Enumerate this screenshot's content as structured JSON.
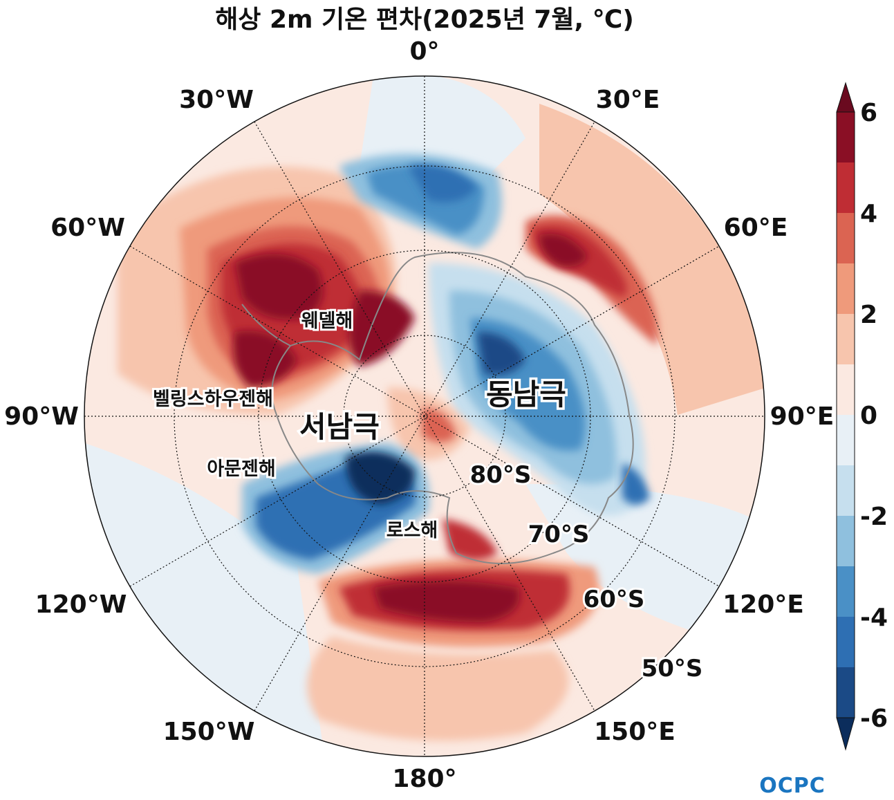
{
  "title": "해상 2m 기온 편차(2025년 7월, ℃)",
  "logo": "OCPC",
  "longitude_labels": [
    {
      "text": "0°",
      "deg": 0
    },
    {
      "text": "30°E",
      "deg": 30
    },
    {
      "text": "60°E",
      "deg": 60
    },
    {
      "text": "90°E",
      "deg": 90
    },
    {
      "text": "120°E",
      "deg": 120
    },
    {
      "text": "150°E",
      "deg": 150
    },
    {
      "text": "180°",
      "deg": 180
    },
    {
      "text": "150°W",
      "deg": -150
    },
    {
      "text": "120°W",
      "deg": -120
    },
    {
      "text": "90°W",
      "deg": -90
    },
    {
      "text": "60°W",
      "deg": -60
    },
    {
      "text": "30°W",
      "deg": -30
    }
  ],
  "latitude_labels": [
    {
      "text": "80°S",
      "lat": -80
    },
    {
      "text": "70°S",
      "lat": -70
    },
    {
      "text": "60°S",
      "lat": -60
    },
    {
      "text": "50°S",
      "lat": -50
    }
  ],
  "region_labels": {
    "weddell": "웨델해",
    "east_antarctica": "동남극",
    "bellingshausen": "벨링스하우젠해",
    "west_antarctica": "서남극",
    "amundsen": "아문젠해",
    "ross": "로스해"
  },
  "colorbar": {
    "ticks": [
      "6",
      "4",
      "2",
      "0",
      "-2",
      "-4",
      "-6"
    ],
    "levels": [
      -6,
      -5,
      -4,
      -3,
      -2,
      -1,
      0,
      1,
      2,
      3,
      4,
      5,
      6
    ],
    "colors": [
      "#1b4a86",
      "#2e6fb3",
      "#4a90c6",
      "#8fc0de",
      "#c6dfee",
      "#e8f0f6",
      "#fbe9e1",
      "#f7c5ad",
      "#ef9a7b",
      "#db6452",
      "#bf2d34",
      "#8a0f25"
    ],
    "under_color": "#0b2d5c",
    "over_color": "#6a0a1f"
  }
}
